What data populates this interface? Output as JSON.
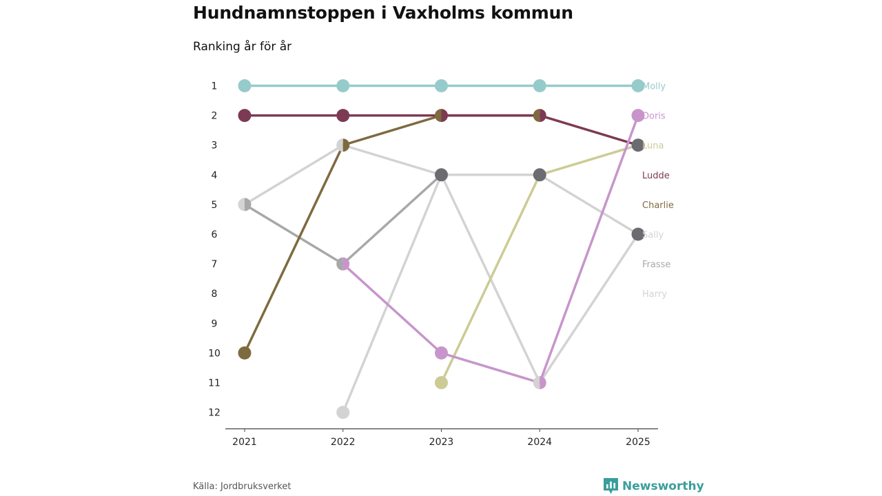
{
  "header": {
    "title": "Hundnamnstoppen i Vaxholms kommun",
    "subtitle": "Ranking år för år"
  },
  "footer": {
    "source": "Källa: Jordbruksverket",
    "brand": "Newsworthy"
  },
  "chart_data": {
    "type": "line",
    "title": "Hundnamnstoppen i Vaxholms kommun",
    "subtitle": "Ranking år för år",
    "xlabel": "",
    "ylabel": "",
    "x": [
      "2021",
      "2022",
      "2023",
      "2024",
      "2025"
    ],
    "ylim": [
      1,
      12
    ],
    "y_inverted": true,
    "y_ticks": [
      1,
      2,
      3,
      4,
      5,
      6,
      7,
      8,
      9,
      10,
      11,
      12
    ],
    "grid": false,
    "legend": "right",
    "series": [
      {
        "name": "Harry",
        "color": "#d3d3d3",
        "values": [
          5,
          3,
          4,
          11,
          6
        ]
      },
      {
        "name": "Frasse",
        "color": "#a8a8a8",
        "values": [
          5,
          7,
          4,
          4,
          null
        ]
      },
      {
        "name": "Sally",
        "color": "#d3d3d3",
        "values": [
          null,
          12,
          4,
          4,
          6
        ]
      },
      {
        "name": "Luna",
        "color": "#cccb95",
        "values": [
          null,
          null,
          11,
          4,
          3
        ]
      },
      {
        "name": "Charlie",
        "color": "#7e6a3f",
        "values": [
          10,
          3,
          2,
          2,
          null
        ]
      },
      {
        "name": "Ludde",
        "color": "#7d3a53",
        "values": [
          2,
          2,
          2,
          2,
          3
        ]
      },
      {
        "name": "Doris",
        "color": "#c795cb",
        "values": [
          null,
          7,
          10,
          11,
          2
        ]
      },
      {
        "name": "Molly",
        "color": "#96cbcb",
        "values": [
          1,
          1,
          1,
          1,
          1
        ]
      }
    ],
    "label_order": [
      "Molly",
      "Doris",
      "Luna",
      "Ludde",
      "Charlie",
      "Sally",
      "Frasse",
      "Harry"
    ],
    "shared_marker_color": "#6b6b72"
  }
}
